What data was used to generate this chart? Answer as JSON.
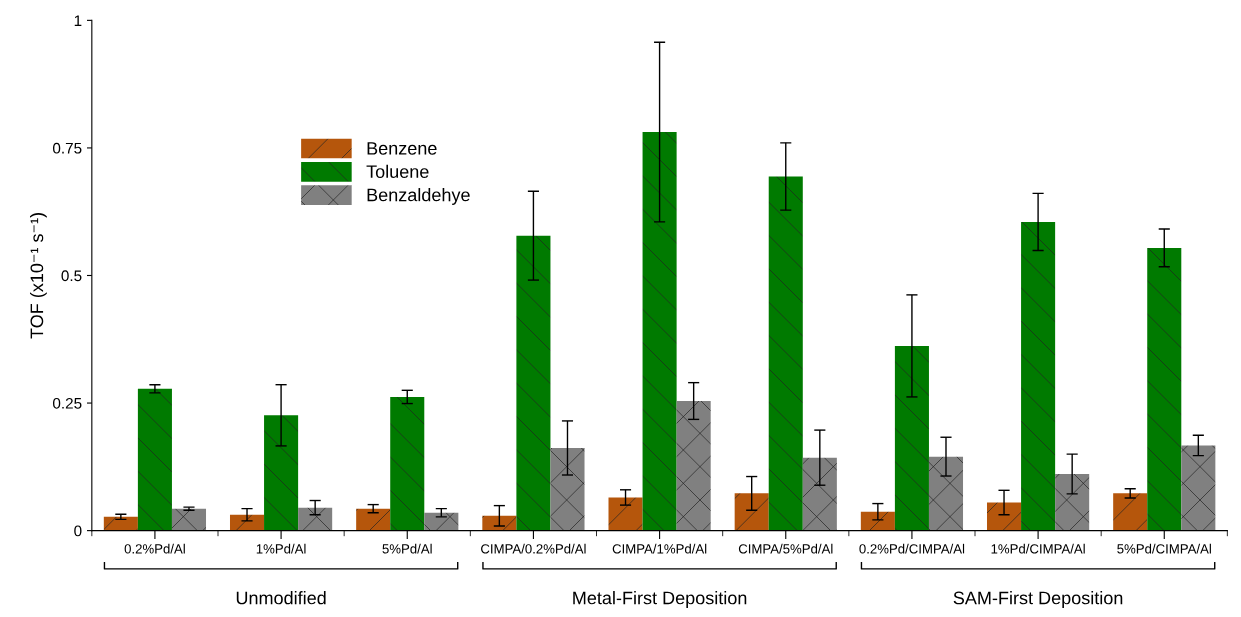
{
  "chart_data": {
    "type": "bar",
    "ylabel": "TOF (x10⁻¹ s⁻¹)",
    "categories": [
      "0.2%Pd/Al",
      "1%Pd/Al",
      "5%Pd/Al",
      "CIMPA/0.2%Pd/Al",
      "CIMPA/1%Pd/Al",
      "CIMPA/5%Pd/Al",
      "0.2%Pd/CIMPA/Al",
      "1%Pd/CIMPA/Al",
      "5%Pd/CIMPA/Al"
    ],
    "series": [
      {
        "name": "Benzene",
        "color": "#b5560c",
        "values": [
          0.027,
          0.031,
          0.043,
          0.029,
          0.065,
          0.073,
          0.037,
          0.055,
          0.073
        ],
        "errors": [
          0.005,
          0.012,
          0.008,
          0.02,
          0.015,
          0.033,
          0.016,
          0.024,
          0.009
        ]
      },
      {
        "name": "Toluene",
        "color": "#007a00",
        "values": [
          0.278,
          0.226,
          0.262,
          0.578,
          0.781,
          0.694,
          0.362,
          0.605,
          0.554
        ],
        "errors": [
          0.008,
          0.06,
          0.013,
          0.087,
          0.176,
          0.066,
          0.1,
          0.056,
          0.037
        ]
      },
      {
        "name": "Benzaldehye",
        "color": "#808080",
        "values": [
          0.043,
          0.045,
          0.035,
          0.162,
          0.254,
          0.143,
          0.145,
          0.111,
          0.167
        ],
        "errors": [
          0.003,
          0.014,
          0.008,
          0.053,
          0.036,
          0.054,
          0.038,
          0.039,
          0.02
        ]
      }
    ],
    "ylim": [
      0,
      1
    ],
    "yticks": [
      0,
      0.25,
      0.5,
      0.75,
      1
    ],
    "grid": false,
    "legend": "top left",
    "annotations": [
      "Unmodified",
      "Metal-First Deposition",
      "SAM-First Deposition"
    ]
  }
}
